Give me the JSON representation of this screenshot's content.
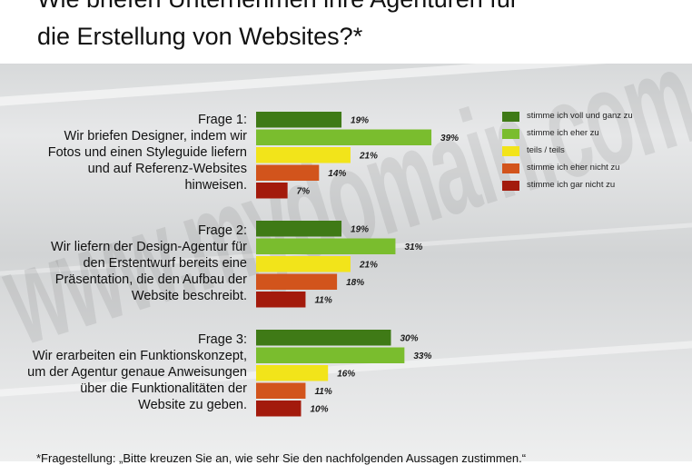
{
  "title": {
    "line1": "Wie briefen Unternehmen ihre Agenturen für",
    "line2": "die Erstellung von Websites?*"
  },
  "watermark": "www.mydomain.com",
  "questions": [
    {
      "heading": "Frage 1:",
      "lines": [
        "Wir briefen Designer, indem wir",
        "Fotos und einen Styleguide liefern",
        "und auf Referenz-Websites",
        "hinweisen."
      ]
    },
    {
      "heading": "Frage 2:",
      "lines": [
        "Wir liefern der Design-Agentur für",
        "den Erstentwurf bereits eine",
        "Präsentation, die den Aufbau der",
        "Website beschreibt."
      ]
    },
    {
      "heading": "Frage 3:",
      "lines": [
        "Wir erarbeiten ein Funktionskonzept,",
        "um der Agentur genaue Anweisungen",
        "über die Funktionalitäten der",
        "Website zu geben."
      ]
    }
  ],
  "legend": [
    {
      "label": "stimme ich voll und ganz zu",
      "color": "#3f7a16"
    },
    {
      "label": "stimme ich eher zu",
      "color": "#7abd2e"
    },
    {
      "label": "teils / teils",
      "color": "#f2e41a"
    },
    {
      "label": "stimme ich eher nicht zu",
      "color": "#d2541c"
    },
    {
      "label": "stimme ich gar nicht zu",
      "color": "#a31a0c"
    }
  ],
  "chart_data": {
    "type": "bar",
    "orientation": "horizontal",
    "categories": [
      "Frage 1",
      "Frage 2",
      "Frage 3"
    ],
    "series": [
      {
        "name": "stimme ich voll und ganz zu",
        "values": [
          19,
          19,
          30
        ],
        "labels": [
          "19%",
          "19%",
          "30%"
        ]
      },
      {
        "name": "stimme ich eher zu",
        "values": [
          39,
          31,
          33
        ],
        "labels": [
          "39%",
          "31%",
          "33%"
        ]
      },
      {
        "name": "teils / teils",
        "values": [
          21,
          21,
          16
        ],
        "labels": [
          "21%",
          "21%",
          "16%"
        ]
      },
      {
        "name": "stimme ich eher nicht zu",
        "values": [
          14,
          18,
          11
        ],
        "labels": [
          "14%",
          "18%",
          "11%"
        ]
      },
      {
        "name": "stimme ich gar nicht zu",
        "values": [
          7,
          11,
          10
        ],
        "labels": [
          "7%",
          "11%",
          "10%"
        ]
      }
    ],
    "unit": "%",
    "legend_position": "top-right"
  },
  "footnote": "*Fragestellung: „Bitte kreuzen Sie an, wie sehr Sie den nachfolgenden Aussagen zustimmen.“"
}
